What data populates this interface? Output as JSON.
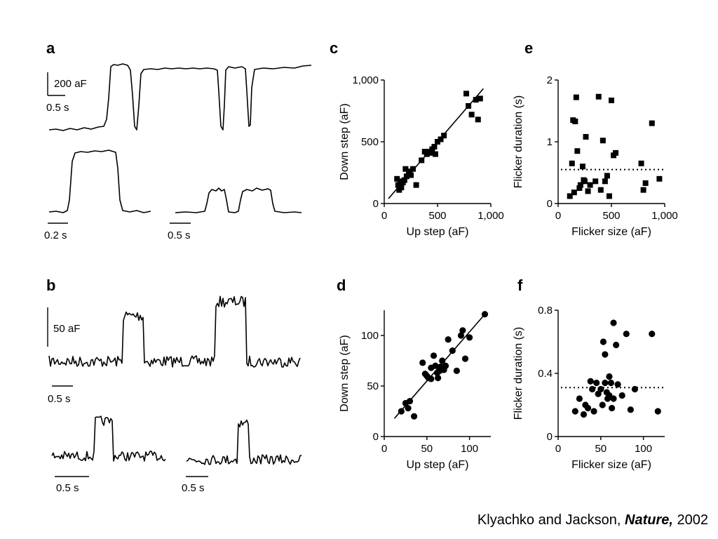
{
  "panel_labels": [
    "a",
    "b",
    "c",
    "d",
    "e",
    "f"
  ],
  "panel_a": {
    "scale_label": "200 aF",
    "time_label_top": "0.5 s",
    "time_label_left": "0.2 s",
    "time_label_right": "0.5 s"
  },
  "panel_b": {
    "scale_label": "50 aF",
    "time_label_top": "0.5 s",
    "time_label_left": "0.5 s",
    "time_label_right": "0.5 s"
  },
  "chart_data": [
    {
      "panel": "c",
      "type": "scatter",
      "marker": "square",
      "xlabel": "Up step (aF)",
      "ylabel": "Down step (aF)",
      "xlim": [
        0,
        1000
      ],
      "ylim": [
        0,
        1000
      ],
      "xticks": [
        "0",
        "500",
        "1,000"
      ],
      "yticks": [
        "0",
        "500",
        "1,000"
      ],
      "xtick_values": [
        0,
        500,
        1000
      ],
      "ytick_values": [
        0,
        500,
        1000
      ],
      "fit_line": [
        [
          40,
          40
        ],
        [
          930,
          930
        ]
      ],
      "x": [
        120,
        130,
        140,
        150,
        160,
        175,
        190,
        200,
        210,
        230,
        250,
        270,
        300,
        350,
        380,
        400,
        420,
        430,
        450,
        470,
        480,
        500,
        530,
        560,
        770,
        790,
        820,
        860,
        880,
        900
      ],
      "y": [
        200,
        150,
        110,
        180,
        130,
        170,
        190,
        280,
        220,
        260,
        230,
        280,
        150,
        350,
        420,
        400,
        420,
        410,
        440,
        460,
        400,
        500,
        520,
        550,
        890,
        790,
        720,
        840,
        680,
        850
      ]
    },
    {
      "panel": "d",
      "type": "scatter",
      "marker": "circle",
      "xlabel": "Up step (aF)",
      "ylabel": "Down step (aF)",
      "xlim": [
        0,
        125
      ],
      "ylim": [
        0,
        125
      ],
      "xticks": [
        "0",
        "50",
        "100"
      ],
      "yticks": [
        "0",
        "50",
        "100"
      ],
      "xtick_values": [
        0,
        50,
        100
      ],
      "ytick_values": [
        0,
        50,
        100
      ],
      "fit_line": [
        [
          12,
          18
        ],
        [
          118,
          121
        ]
      ],
      "x": [
        20,
        25,
        28,
        30,
        35,
        45,
        48,
        50,
        52,
        55,
        55,
        58,
        60,
        62,
        63,
        65,
        65,
        66,
        68,
        70,
        70,
        72,
        75,
        80,
        85,
        90,
        92,
        95,
        100,
        118
      ],
      "y": [
        25,
        33,
        28,
        35,
        20,
        73,
        62,
        60,
        58,
        68,
        57,
        80,
        70,
        63,
        58,
        65,
        67,
        69,
        75,
        68,
        66,
        70,
        96,
        85,
        65,
        100,
        105,
        77,
        98,
        121
      ]
    },
    {
      "panel": "e",
      "type": "scatter",
      "marker": "square",
      "xlabel": "Flicker size (aF)",
      "ylabel": "Flicker duration (s)",
      "xlim": [
        0,
        1000
      ],
      "ylim": [
        0,
        2
      ],
      "xticks": [
        "0",
        "500",
        "1,000"
      ],
      "yticks": [
        "0",
        "1",
        "2"
      ],
      "xtick_values": [
        0,
        500,
        1000
      ],
      "ytick_values": [
        0,
        1,
        2
      ],
      "reference_line_y": 0.55,
      "x": [
        110,
        130,
        140,
        150,
        160,
        170,
        180,
        200,
        210,
        230,
        240,
        250,
        260,
        280,
        300,
        350,
        380,
        400,
        420,
        440,
        460,
        480,
        500,
        520,
        540,
        780,
        800,
        820,
        880,
        950
      ],
      "y": [
        0.12,
        0.65,
        1.35,
        0.18,
        1.33,
        1.72,
        0.85,
        0.25,
        0.3,
        0.6,
        0.38,
        0.36,
        1.08,
        0.2,
        0.3,
        0.36,
        1.73,
        0.22,
        1.02,
        0.36,
        0.45,
        0.12,
        1.67,
        0.78,
        0.82,
        0.65,
        0.22,
        0.33,
        1.3,
        0.4
      ]
    },
    {
      "panel": "f",
      "type": "scatter",
      "marker": "circle",
      "xlabel": "Flicker size (aF)",
      "ylabel": "Flicker duration (s)",
      "xlim": [
        0,
        125
      ],
      "ylim": [
        0,
        0.8
      ],
      "xticks": [
        "0",
        "50",
        "100"
      ],
      "yticks": [
        "0",
        "0.4",
        "0.8"
      ],
      "xtick_values": [
        0,
        50,
        100
      ],
      "ytick_values": [
        0,
        0.4,
        0.8
      ],
      "reference_line_y": 0.31,
      "x": [
        20,
        25,
        30,
        32,
        35,
        38,
        40,
        42,
        45,
        47,
        50,
        52,
        53,
        55,
        55,
        57,
        58,
        60,
        60,
        62,
        63,
        65,
        65,
        68,
        70,
        75,
        80,
        85,
        90,
        110,
        117
      ],
      "y": [
        0.16,
        0.24,
        0.14,
        0.2,
        0.18,
        0.35,
        0.3,
        0.16,
        0.34,
        0.27,
        0.3,
        0.2,
        0.6,
        0.34,
        0.52,
        0.28,
        0.24,
        0.38,
        0.26,
        0.34,
        0.18,
        0.72,
        0.24,
        0.58,
        0.33,
        0.26,
        0.65,
        0.17,
        0.3,
        0.65,
        0.16
      ]
    }
  ],
  "citation": {
    "authors": "Klyachko and Jackson,",
    "journal": "Nature,",
    "year": "2002"
  }
}
